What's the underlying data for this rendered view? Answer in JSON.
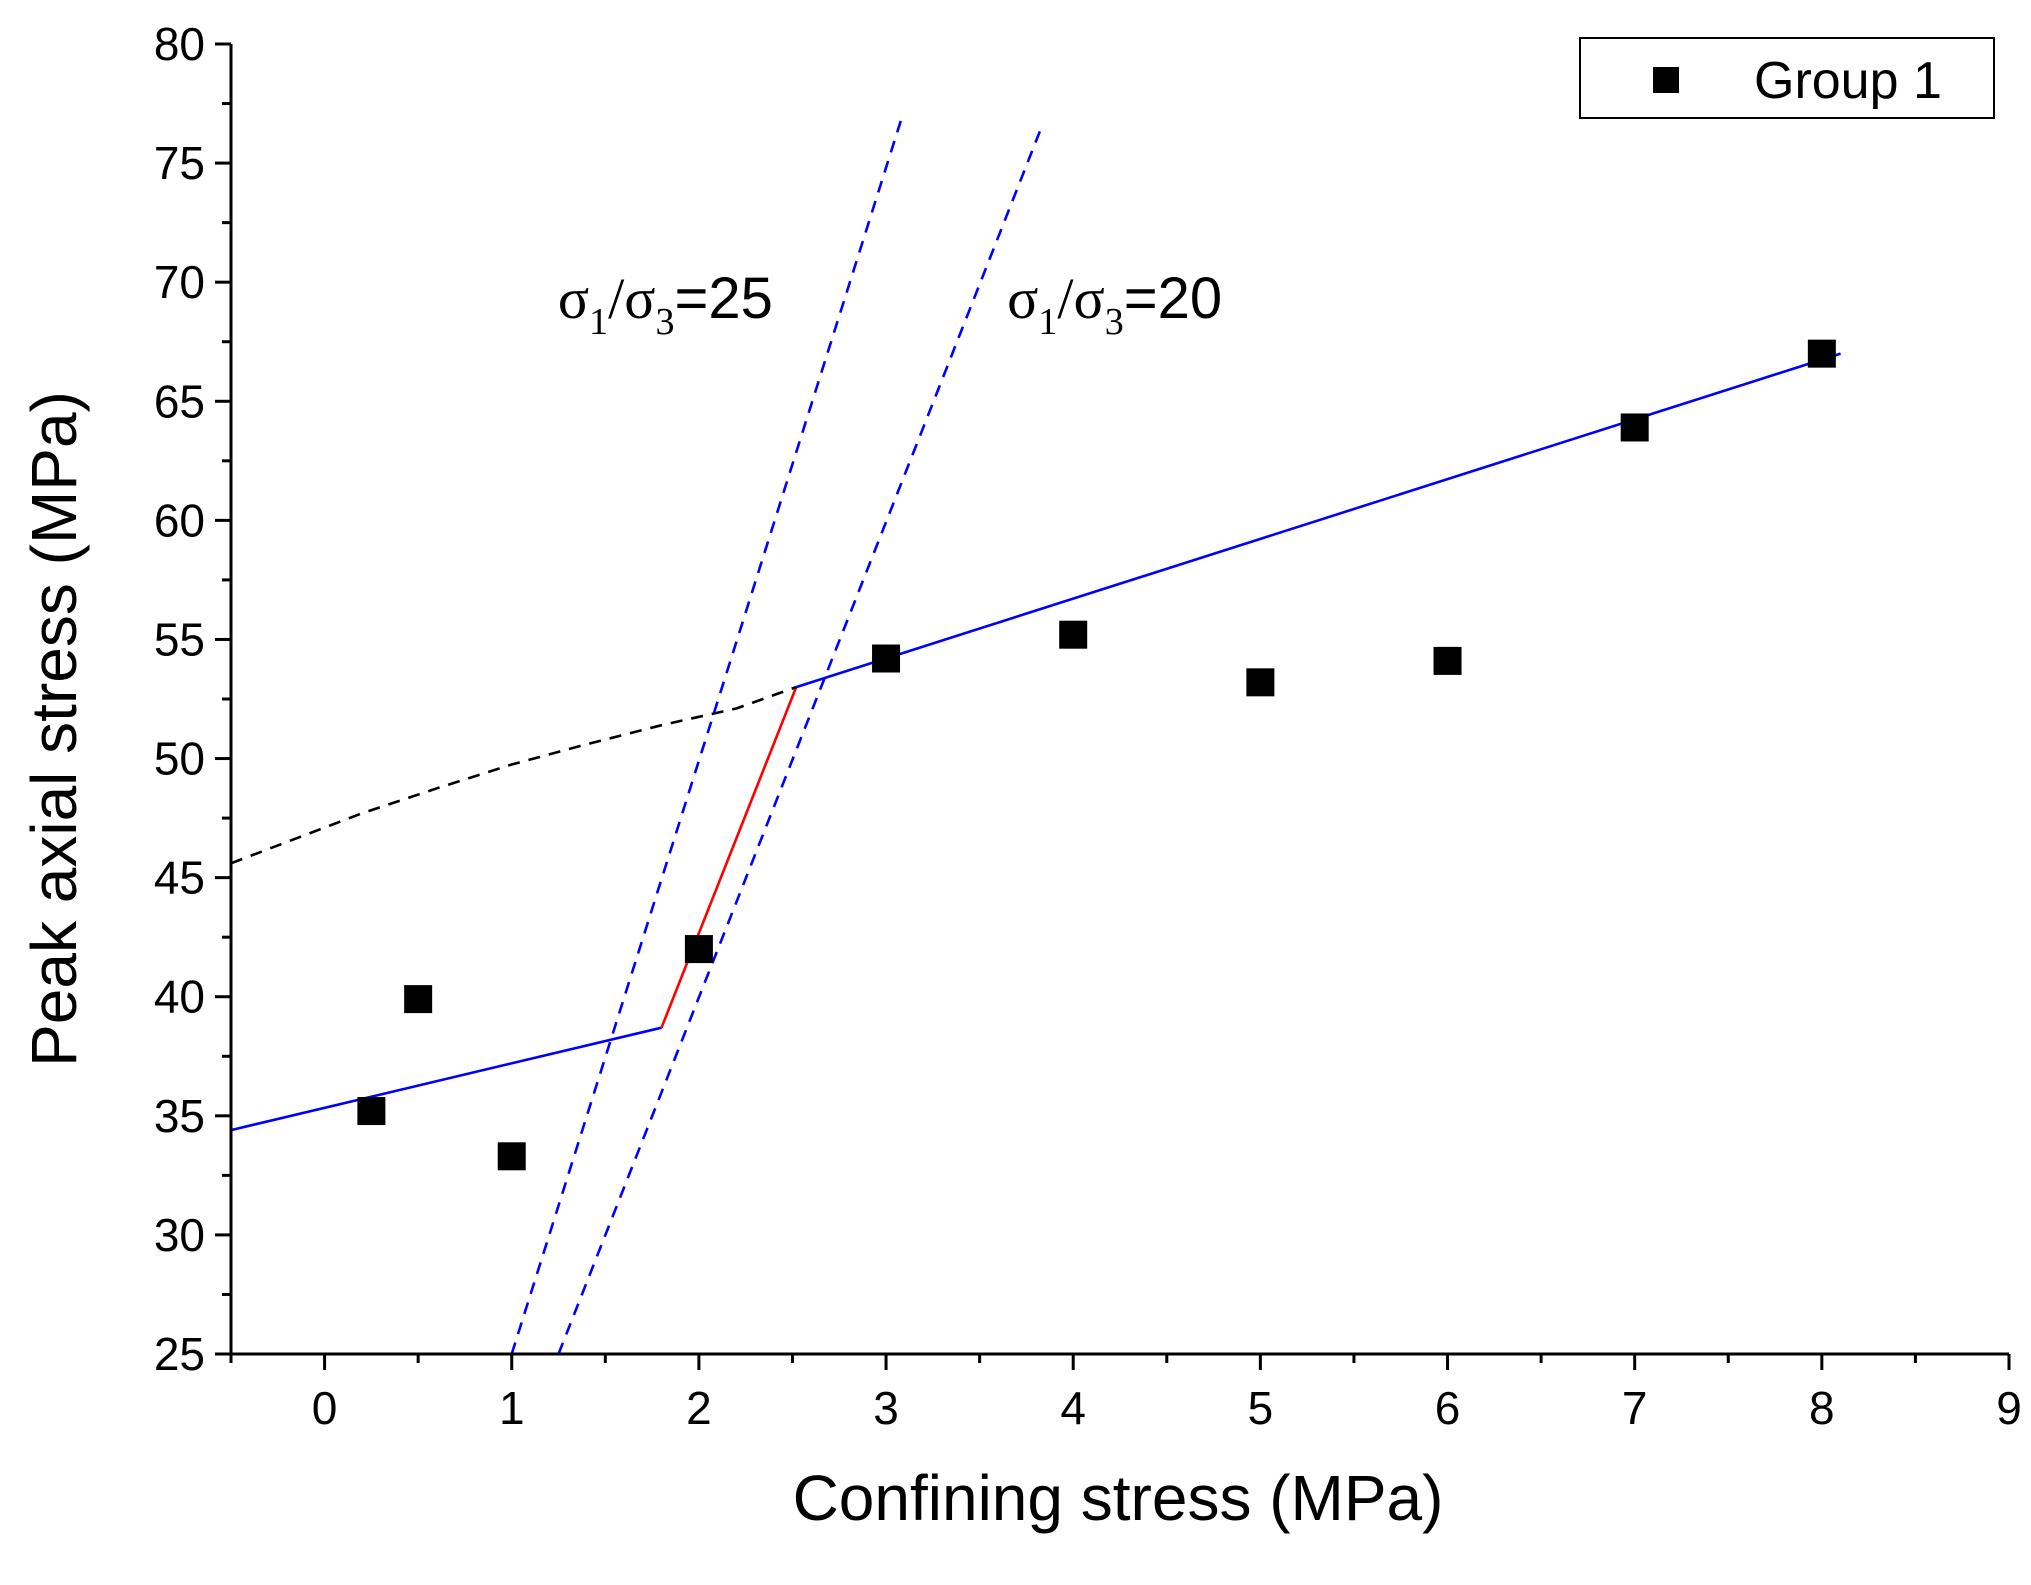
{
  "chart_data": {
    "type": "scatter",
    "title": "",
    "xlabel": "Confining stress (MPa)",
    "ylabel": "Peak axial stress (MPa)",
    "xlim": [
      -0.5,
      9
    ],
    "ylim": [
      25,
      80
    ],
    "x_ticks": [
      0,
      1,
      2,
      3,
      4,
      5,
      6,
      7,
      8,
      9
    ],
    "y_ticks": [
      25,
      30,
      35,
      40,
      45,
      50,
      55,
      60,
      65,
      70,
      75,
      80
    ],
    "legend": {
      "position": "top-right",
      "entries": [
        "Group 1"
      ]
    },
    "series": [
      {
        "name": "Group 1",
        "marker": "square",
        "color": "#000000",
        "points": [
          {
            "x": 0.25,
            "y": 35.2
          },
          {
            "x": 0.5,
            "y": 39.9
          },
          {
            "x": 1.0,
            "y": 33.3
          },
          {
            "x": 2.0,
            "y": 42.0
          },
          {
            "x": 3.0,
            "y": 54.2
          },
          {
            "x": 4.0,
            "y": 55.2
          },
          {
            "x": 5.0,
            "y": 53.2
          },
          {
            "x": 6.0,
            "y": 54.1
          },
          {
            "x": 7.0,
            "y": 63.9
          },
          {
            "x": 8.0,
            "y": 67.0
          }
        ]
      }
    ],
    "fit_lines": [
      {
        "name": "low-confinement-fit",
        "style": "solid",
        "color": "#0000ff",
        "points": [
          [
            -0.5,
            34.4
          ],
          [
            1.8,
            38.7
          ]
        ]
      },
      {
        "name": "transition",
        "style": "solid",
        "color": "#ff0000",
        "points": [
          [
            1.8,
            38.7
          ],
          [
            2.52,
            53.0
          ]
        ]
      },
      {
        "name": "high-confinement-fit",
        "style": "solid",
        "color": "#0000ff",
        "points": [
          [
            2.52,
            53.0
          ],
          [
            8.1,
            67.0
          ]
        ]
      },
      {
        "name": "extrapolation",
        "style": "dashed",
        "color": "#000000",
        "points": [
          [
            -0.5,
            45.6
          ],
          [
            -0.2,
            46.5
          ],
          [
            0.2,
            47.7
          ],
          [
            0.6,
            48.75
          ],
          [
            1.0,
            49.75
          ],
          [
            1.4,
            50.6
          ],
          [
            1.8,
            51.4
          ],
          [
            2.2,
            52.1
          ],
          [
            2.52,
            53.0
          ]
        ]
      },
      {
        "name": "ratio-25-line",
        "style": "dashed",
        "color": "#0000ff",
        "points": [
          [
            1.0,
            25.0
          ],
          [
            3.08,
            76.8
          ]
        ]
      },
      {
        "name": "ratio-20-line",
        "style": "dashed",
        "color": "#0000ff",
        "points": [
          [
            1.25,
            25.0
          ],
          [
            3.83,
            76.5
          ]
        ]
      }
    ],
    "annotations": [
      {
        "name": "ratio-25-label",
        "sigma": "σ",
        "sub1": "1",
        "slash": "/",
        "sub3": "3",
        "value": "=25",
        "x": 1.3,
        "y": 69.5
      },
      {
        "name": "ratio-20-label",
        "sigma": "σ",
        "sub1": "1",
        "slash": "/",
        "sub3": "3",
        "value": "=20",
        "x": 3.7,
        "y": 69.5
      }
    ]
  }
}
